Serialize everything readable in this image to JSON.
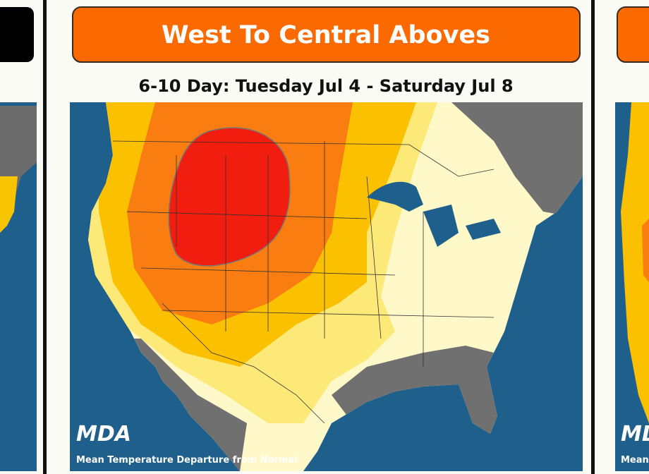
{
  "main_card": {
    "header": "West To Central Aboves",
    "subtitle": "6-10 Day: Tuesday Jul 4 - Saturday Jul 8",
    "map": {
      "logo": "MDA",
      "caption": "Mean Temperature Departure from Normal"
    }
  }
}
